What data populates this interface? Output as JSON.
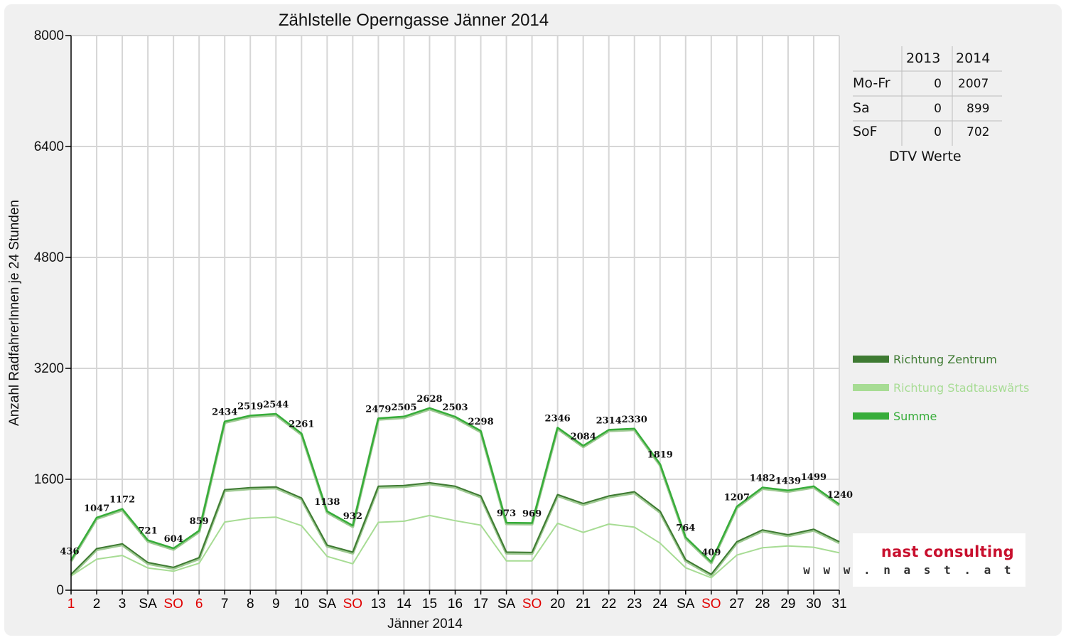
{
  "chart_data": {
    "type": "line",
    "title": "Zählstelle Operngasse Jänner 2014",
    "xlabel": "Jänner 2014",
    "ylabel": "Anzahl RadfahrerInnen je 24 Stunden",
    "ylim": [
      0,
      8000
    ],
    "yticks": [
      "0",
      "1600",
      "3200",
      "4800",
      "6400",
      "8000"
    ],
    "grid": true,
    "legend_position": "right",
    "categories": [
      "1",
      "2",
      "3",
      "SA",
      "SO",
      "6",
      "7",
      "8",
      "9",
      "10",
      "SA",
      "SO",
      "13",
      "14",
      "15",
      "16",
      "17",
      "SA",
      "SO",
      "20",
      "21",
      "22",
      "23",
      "24",
      "SA",
      "SO",
      "27",
      "28",
      "29",
      "30",
      "31"
    ],
    "category_colors": [
      "#e00000",
      "#000000",
      "#000000",
      "#000000",
      "#e00000",
      "#e00000",
      "#000000",
      "#000000",
      "#000000",
      "#000000",
      "#000000",
      "#e00000",
      "#000000",
      "#000000",
      "#000000",
      "#000000",
      "#000000",
      "#000000",
      "#e00000",
      "#000000",
      "#000000",
      "#000000",
      "#000000",
      "#000000",
      "#000000",
      "#e00000",
      "#000000",
      "#000000",
      "#000000",
      "#000000",
      "#000000"
    ],
    "series": [
      {
        "name": "Richtung Zentrum",
        "color": "#3e7a32",
        "values": [
          230,
          600,
          670,
          400,
          330,
          470,
          1450,
          1480,
          1490,
          1330,
          650,
          550,
          1500,
          1510,
          1550,
          1500,
          1360,
          550,
          545,
          1380,
          1250,
          1360,
          1420,
          1140,
          440,
          230,
          700,
          870,
          800,
          880,
          700
        ]
      },
      {
        "name": "Richtung Stadtauswärts",
        "color": "#a7dc94",
        "values": [
          206,
          447,
          502,
          321,
          274,
          389,
          984,
          1039,
          1054,
          931,
          488,
          382,
          979,
          995,
          1078,
          1003,
          938,
          423,
          424,
          966,
          834,
          954,
          910,
          679,
          324,
          179,
          507,
          612,
          639,
          619,
          540
        ]
      },
      {
        "name": "Summe",
        "color": "#37ad3a",
        "values": [
          436,
          1047,
          1172,
          721,
          604,
          859,
          2434,
          2519,
          2544,
          2261,
          1138,
          932,
          2479,
          2505,
          2628,
          2503,
          2298,
          973,
          969,
          2346,
          2084,
          2314,
          2330,
          1819,
          764,
          409,
          1207,
          1482,
          1439,
          1499,
          1240
        ]
      }
    ],
    "data_labels": [
      "436",
      "1047",
      "1172",
      "721",
      "604",
      "859",
      "2434",
      "2519",
      "2544",
      "2261",
      "1138",
      "932",
      "2479",
      "2505",
      "2628",
      "2503",
      "2298",
      "973",
      "969",
      "2346",
      "2084",
      "2314",
      "2330",
      "1819",
      "764",
      "409",
      "1207",
      "1482",
      "1439",
      "1499",
      "1240"
    ]
  },
  "dtv_table": {
    "headers": [
      "2013",
      "2014"
    ],
    "rows": [
      {
        "label": "Mo-Fr",
        "v2013": "0",
        "v2014": "2007"
      },
      {
        "label": "Sa",
        "v2013": "0",
        "v2014": "899"
      },
      {
        "label": "SoF",
        "v2013": "0",
        "v2014": "702"
      }
    ],
    "caption": "DTV Werte"
  },
  "logo": {
    "name": "nast consulting",
    "url": "w w w . n a s t . a t",
    "name_color": "#c8102e"
  }
}
